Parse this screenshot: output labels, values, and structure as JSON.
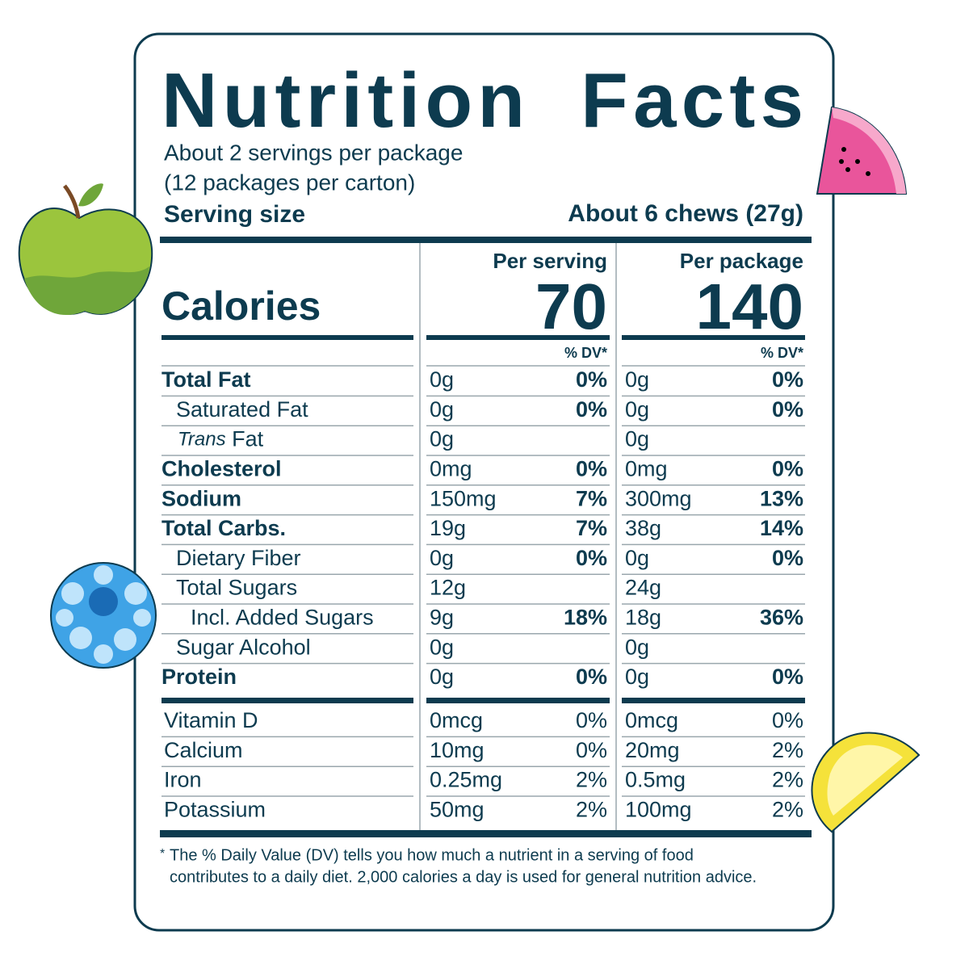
{
  "header": {
    "title": "Nutrition Facts",
    "servings_per_package": "About 2 servings per package",
    "packages_per_carton": "(12 packages per carton)",
    "serving_size_label": "Serving size",
    "serving_size_value": "About 6 chews (27g)"
  },
  "calories": {
    "label": "Calories",
    "per_serving_heading": "Per serving",
    "per_package_heading": "Per package",
    "per_serving": 70,
    "per_package": 140,
    "dv_heading": "% DV*"
  },
  "nutrients": [
    {
      "name": "Total Fat",
      "bold": true,
      "indent": 0,
      "serving_amount": "0g",
      "serving_dv": "0%",
      "package_amount": "0g",
      "package_dv": "0%"
    },
    {
      "name": "Saturated Fat",
      "bold": false,
      "indent": 1,
      "serving_amount": "0g",
      "serving_dv": "0%",
      "package_amount": "0g",
      "package_dv": "0%"
    },
    {
      "name_italic": "Trans",
      "name": "Fat",
      "bold": false,
      "indent": 1,
      "serving_amount": "0g",
      "package_amount": "0g"
    },
    {
      "name": "Cholesterol",
      "bold": true,
      "indent": 0,
      "serving_amount": "0mg",
      "serving_dv": "0%",
      "package_amount": "0mg",
      "package_dv": "0%"
    },
    {
      "name": "Sodium",
      "bold": true,
      "indent": 0,
      "serving_amount": "150mg",
      "serving_dv": "7%",
      "package_amount": "300mg",
      "package_dv": "13%"
    },
    {
      "name": "Total Carbs.",
      "bold": true,
      "indent": 0,
      "serving_amount": "19g",
      "serving_dv": "7%",
      "package_amount": "38g",
      "package_dv": "14%"
    },
    {
      "name": "Dietary Fiber",
      "bold": false,
      "indent": 1,
      "serving_amount": "0g",
      "serving_dv": "0%",
      "package_amount": "0g",
      "package_dv": "0%"
    },
    {
      "name": "Total Sugars",
      "bold": false,
      "indent": 1,
      "serving_amount": "12g",
      "package_amount": "24g"
    },
    {
      "name": "Incl. Added Sugars",
      "bold": false,
      "indent": 2,
      "serving_amount": "9g",
      "serving_dv": "18%",
      "package_amount": "18g",
      "package_dv": "36%"
    },
    {
      "name": "Sugar Alcohol",
      "bold": false,
      "indent": 1,
      "serving_amount": "0g",
      "package_amount": "0g"
    },
    {
      "name": "Protein",
      "bold": true,
      "indent": 0,
      "serving_amount": "0g",
      "serving_dv": "0%",
      "package_amount": "0g",
      "package_dv": "0%"
    }
  ],
  "vitamins": [
    {
      "name": "Vitamin D",
      "serving_amount": "0mcg",
      "serving_dv": "0%",
      "package_amount": "0mcg",
      "package_dv": "0%"
    },
    {
      "name": "Calcium",
      "serving_amount": "10mg",
      "serving_dv": "0%",
      "package_amount": "20mg",
      "package_dv": "2%"
    },
    {
      "name": "Iron",
      "serving_amount": "0.25mg",
      "serving_dv": "2%",
      "package_amount": "0.5mg",
      "package_dv": "2%"
    },
    {
      "name": "Potassium",
      "serving_amount": "50mg",
      "serving_dv": "2%",
      "package_amount": "100mg",
      "package_dv": "2%"
    }
  ],
  "footnote": {
    "marker": "*",
    "line1": "The % Daily Value (DV) tells you how much a nutrient in a serving of food",
    "line2": "contributes to a daily diet. 2,000 calories a day is used for general nutrition advice."
  }
}
